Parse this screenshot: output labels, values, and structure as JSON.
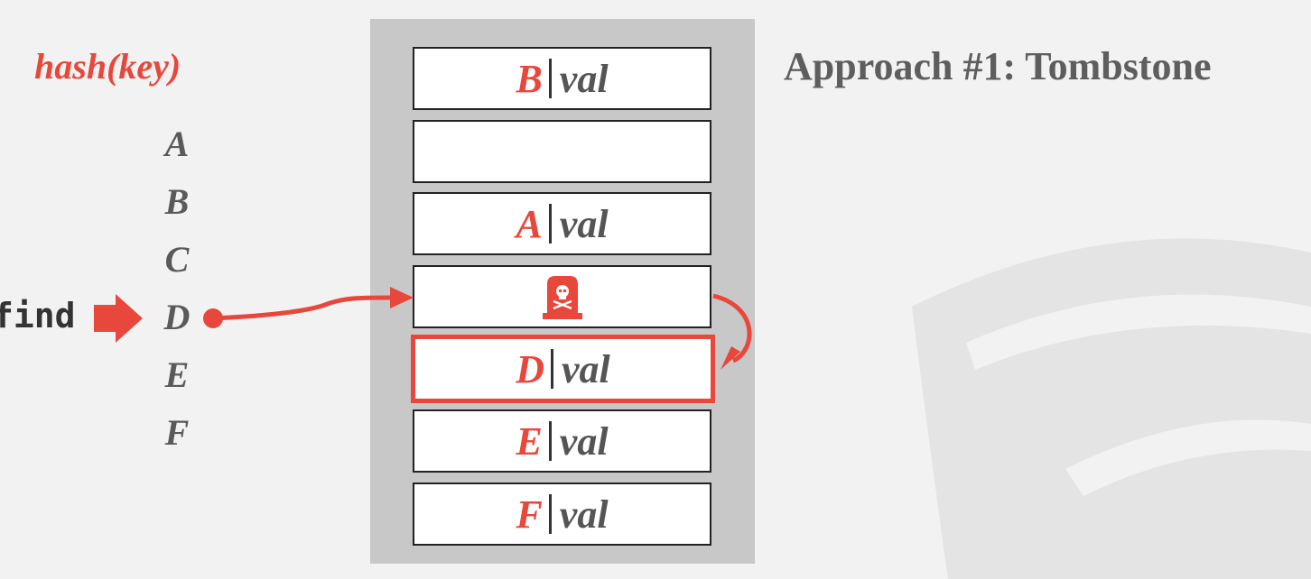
{
  "hash_label": "hash(key)",
  "keys": [
    "A",
    "B",
    "C",
    "D",
    "E",
    "F"
  ],
  "find_label": "find",
  "slots": [
    {
      "key": "B",
      "val": "val"
    },
    {
      "key": "",
      "val": ""
    },
    {
      "key": "A",
      "val": "val"
    },
    {
      "tombstone": true
    },
    {
      "key": "D",
      "val": "val",
      "highlighted": true
    },
    {
      "key": "E",
      "val": "val"
    },
    {
      "key": "F",
      "val": "val"
    }
  ],
  "title": "Approach #1: Tombstone",
  "colors": {
    "accent": "#e8473b",
    "table_bg": "#c8c8c8",
    "text_gray": "#5e5e5e"
  },
  "icons": {
    "tombstone": "tombstone-skull-icon",
    "find_arrow": "right-arrow-icon"
  }
}
